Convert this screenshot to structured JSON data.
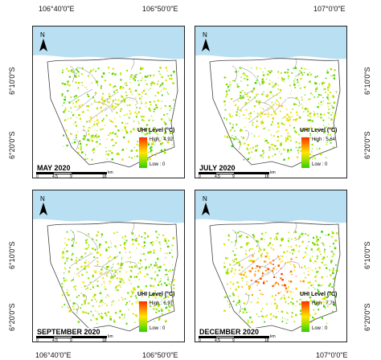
{
  "axes": {
    "top": [
      "106°40'0\"E",
      "106°50'0\"E",
      "107°0'0\"E"
    ],
    "bottom": [
      "106°40'0\"E",
      "106°50'0\"E",
      "107°0'0\"E"
    ],
    "left": [
      "6°10'0\"S",
      "6°20'0\"S",
      "6°10'0\"S",
      "6°20'0\"S"
    ],
    "right": [
      "6°10'0\"S",
      "6°20'0\"S",
      "6°10'0\"S",
      "6°20'0\"S"
    ]
  },
  "legend_title": "UHI Level (°C)",
  "north_label": "N",
  "scale": {
    "ticks": [
      "0",
      "4,5",
      "9",
      "18"
    ],
    "unit": "km"
  },
  "colors": {
    "sea": "#b9dff2",
    "high": "#ff2a00",
    "low": "#2bd000"
  },
  "panels": [
    {
      "id": "may",
      "label": "MAY 2020",
      "high": "High : 4,92",
      "low": "Low : 0",
      "intensity": 0.15
    },
    {
      "id": "july",
      "label": "JULY 2020",
      "high": "High : 5,64",
      "low": "Low : 0",
      "intensity": 0.2
    },
    {
      "id": "september",
      "label": "SEPTEMBER 2020",
      "high": "High : 6,97",
      "low": "Low : 0",
      "intensity": 0.12
    },
    {
      "id": "december",
      "label": "DECEMBER 2020",
      "high": "High : 7,76",
      "low": "Low : 0",
      "intensity": 0.6
    }
  ]
}
